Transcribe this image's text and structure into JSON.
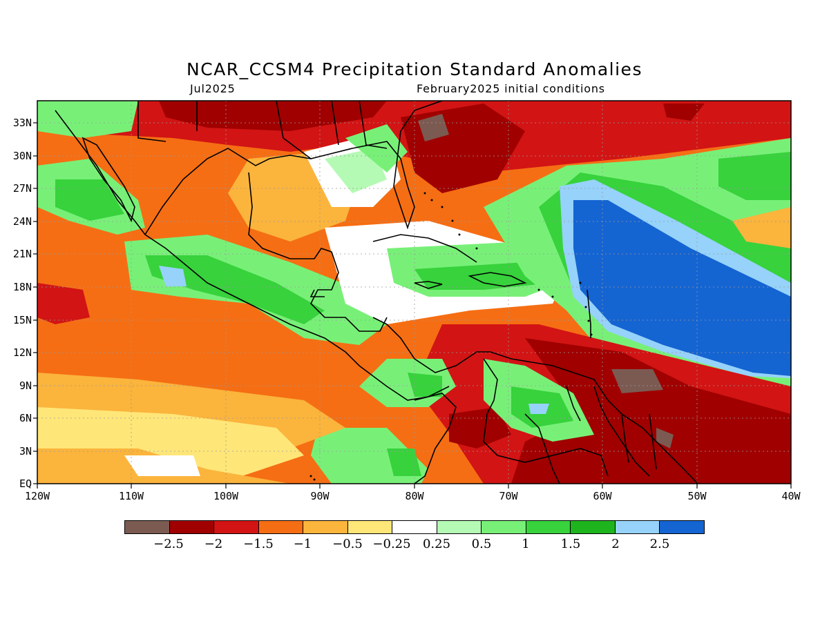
{
  "title": "NCAR_CCSM4 Precipitation Standard Anomalies",
  "subtitle_left": "Jul2025",
  "subtitle_right": "February2025 initial conditions",
  "lat_labels": [
    "33N",
    "30N",
    "27N",
    "24N",
    "21N",
    "18N",
    "15N",
    "12N",
    "9N",
    "6N",
    "3N",
    "EQ"
  ],
  "lon_labels": [
    "120W",
    "110W",
    "100W",
    "90W",
    "80W",
    "70W",
    "60W",
    "50W",
    "40W"
  ],
  "colorbar": {
    "colors": [
      "#7b5a52",
      "#a00000",
      "#d21414",
      "#f56e14",
      "#fbb43c",
      "#ffe678",
      "#ffffff",
      "#b4fab4",
      "#78f078",
      "#37d23c",
      "#1eb41e",
      "#96d2fa",
      "#1464d2"
    ],
    "labels": [
      "-2.5",
      "-2",
      "-1.5",
      "-1",
      "-0.5",
      "-0.25",
      "0.25",
      "0.5",
      "1",
      "1.5",
      "2",
      "2.5"
    ]
  },
  "colors": {
    "dry_strong": "#a00000",
    "dry": "#f56e14",
    "neutral": "#ffffff",
    "wet": "#37d23c",
    "wet_strong": "#1464d2"
  }
}
